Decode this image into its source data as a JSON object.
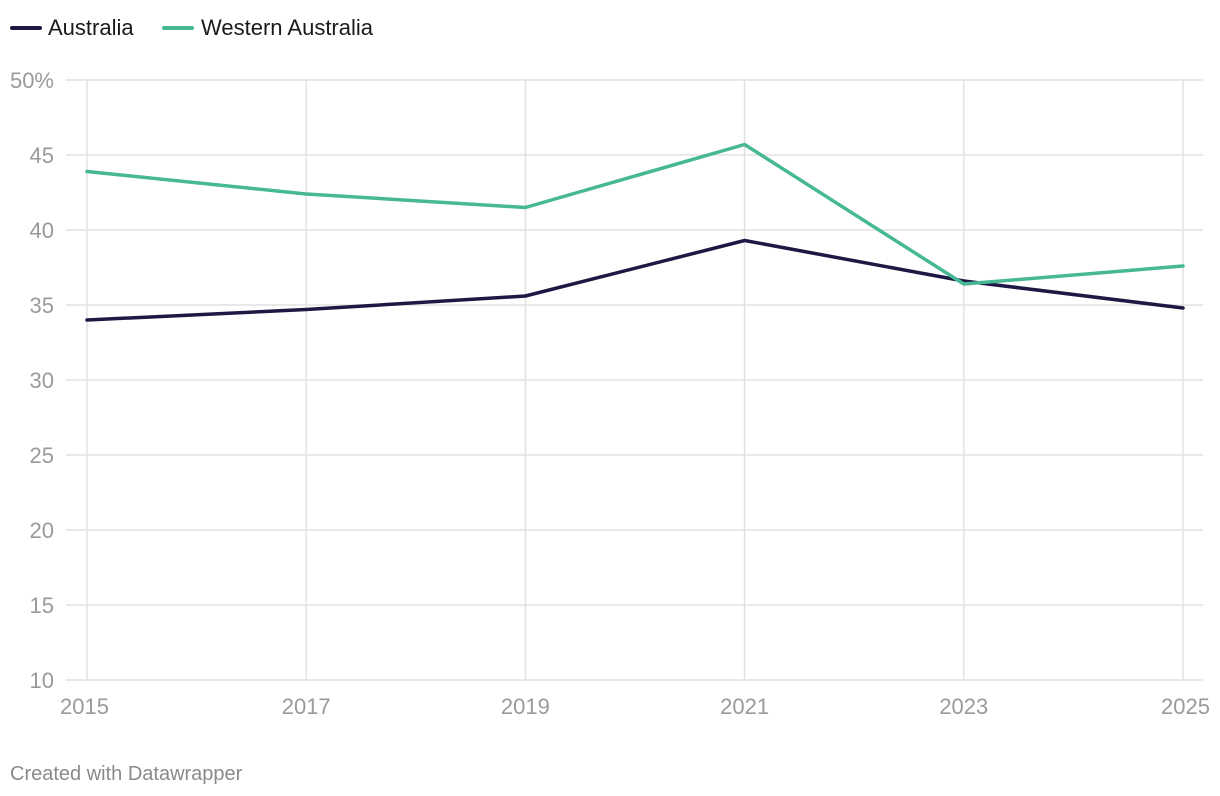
{
  "chart_data": {
    "type": "line",
    "title": "",
    "xlabel": "",
    "ylabel": "",
    "x": [
      "2015",
      "2017",
      "2019",
      "2021",
      "2023",
      "2025"
    ],
    "ylim": [
      10,
      50
    ],
    "y_ticks": [
      10,
      15,
      20,
      25,
      30,
      35,
      40,
      45,
      50
    ],
    "y_tick_labels": [
      "10",
      "15",
      "20",
      "25",
      "30",
      "35",
      "40",
      "45",
      "50%"
    ],
    "grid": true,
    "legend_position": "top-left",
    "series": [
      {
        "name": "Australia",
        "color": "#1c1a45",
        "values": [
          34.0,
          34.7,
          35.6,
          39.3,
          36.6,
          34.8
        ]
      },
      {
        "name": "Western Australia",
        "color": "#46b893",
        "values": [
          43.9,
          42.4,
          41.5,
          45.7,
          36.4,
          37.6
        ]
      }
    ]
  },
  "footer": {
    "text": "Created with Datawrapper"
  }
}
